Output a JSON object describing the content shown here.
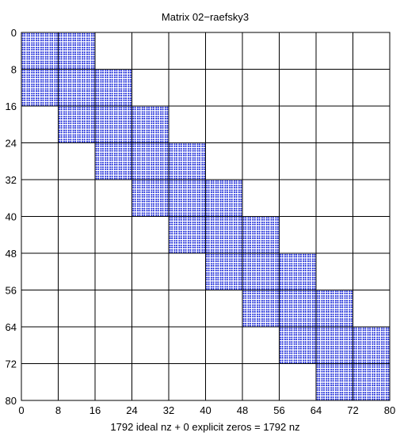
{
  "chart_data": {
    "type": "spy",
    "title": "Matrix 02−raefsky3",
    "xlabel": "1792 ideal nz + 0 explicit zeros = 1792 nz",
    "ylabel": "",
    "xlim": [
      0,
      80
    ],
    "ylim": [
      0,
      80
    ],
    "y_inverted": true,
    "x_ticks": [
      0,
      8,
      16,
      24,
      32,
      40,
      48,
      56,
      64,
      72,
      80
    ],
    "y_ticks": [
      0,
      8,
      16,
      24,
      32,
      40,
      48,
      56,
      64,
      72,
      80
    ],
    "x_tick_labels": [
      "0",
      "8",
      "16",
      "24",
      "32",
      "40",
      "48",
      "56",
      "64",
      "72",
      "80"
    ],
    "y_tick_labels": [
      "0",
      "8",
      "16",
      "24",
      "32",
      "40",
      "48",
      "56",
      "64",
      "72",
      "80"
    ],
    "grid": true,
    "block_size": 8,
    "nonzero_blocks": [
      {
        "row": 0,
        "col": 0
      },
      {
        "row": 0,
        "col": 8
      },
      {
        "row": 8,
        "col": 0
      },
      {
        "row": 8,
        "col": 8
      },
      {
        "row": 8,
        "col": 16
      },
      {
        "row": 16,
        "col": 8
      },
      {
        "row": 16,
        "col": 16
      },
      {
        "row": 16,
        "col": 24
      },
      {
        "row": 24,
        "col": 16
      },
      {
        "row": 24,
        "col": 24
      },
      {
        "row": 24,
        "col": 32
      },
      {
        "row": 32,
        "col": 24
      },
      {
        "row": 32,
        "col": 32
      },
      {
        "row": 32,
        "col": 40
      },
      {
        "row": 40,
        "col": 32
      },
      {
        "row": 40,
        "col": 40
      },
      {
        "row": 40,
        "col": 48
      },
      {
        "row": 48,
        "col": 40
      },
      {
        "row": 48,
        "col": 48
      },
      {
        "row": 48,
        "col": 56
      },
      {
        "row": 56,
        "col": 48
      },
      {
        "row": 56,
        "col": 56
      },
      {
        "row": 56,
        "col": 64
      },
      {
        "row": 64,
        "col": 56
      },
      {
        "row": 64,
        "col": 64
      },
      {
        "row": 64,
        "col": 72
      },
      {
        "row": 72,
        "col": 64
      },
      {
        "row": 72,
        "col": 72
      }
    ],
    "marker_color": "#1c2ad8",
    "grid_color": "#000000"
  }
}
